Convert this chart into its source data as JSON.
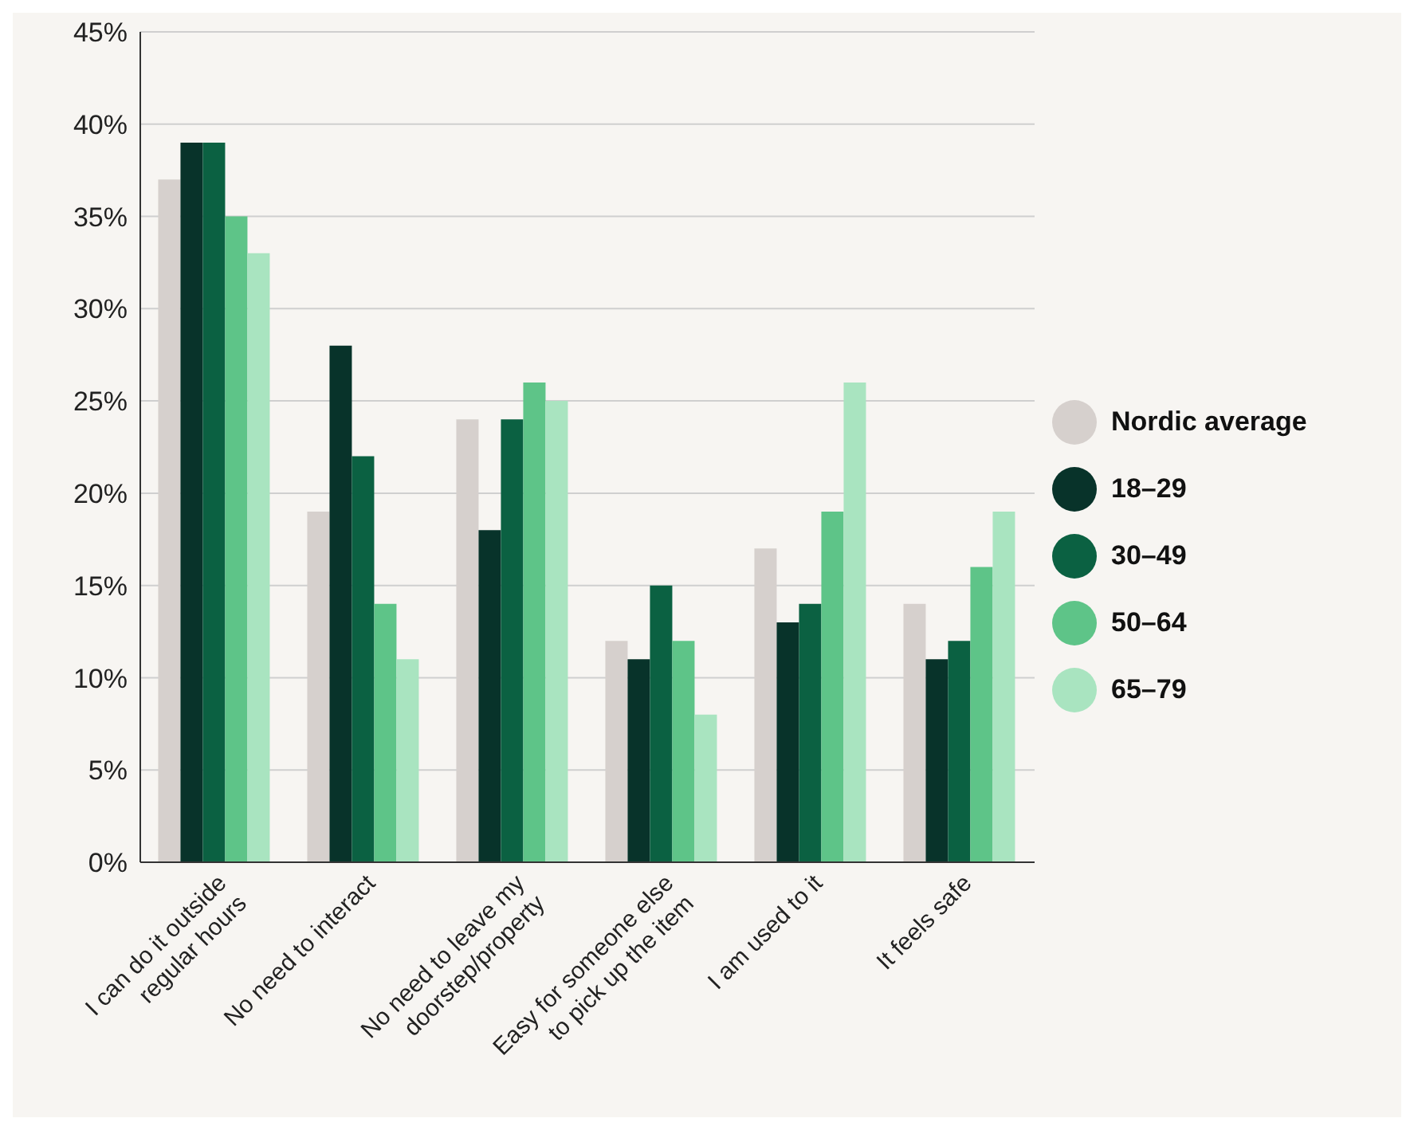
{
  "chart_data": {
    "type": "bar",
    "categories": [
      "I can do it outside regular hours",
      "No need to interact",
      "No need to leave my doorstep/property",
      "Easy for someone else to pick up the item",
      "I am used to it",
      "It feels safe"
    ],
    "series": [
      {
        "name": "Nordic average",
        "color": "#d6d0cd",
        "values": [
          37,
          19,
          24,
          12,
          17,
          14
        ]
      },
      {
        "name": "18–29",
        "color": "#08332a",
        "values": [
          39,
          28,
          18,
          11,
          13,
          11
        ]
      },
      {
        "name": "30–49",
        "color": "#0b6142",
        "values": [
          39,
          22,
          24,
          15,
          14,
          12
        ]
      },
      {
        "name": "50–64",
        "color": "#5ec488",
        "values": [
          35,
          14,
          26,
          12,
          19,
          16
        ]
      },
      {
        "name": "65–79",
        "color": "#a9e4c0",
        "values": [
          33,
          11,
          25,
          8,
          26,
          19
        ]
      }
    ],
    "ylim": [
      0,
      45
    ],
    "yticks": [
      {
        "value": 0,
        "label": "0%"
      },
      {
        "value": 5,
        "label": "5%"
      },
      {
        "value": 10,
        "label": "10%"
      },
      {
        "value": 15,
        "label": "15%"
      },
      {
        "value": 20,
        "label": "20%"
      },
      {
        "value": 25,
        "label": "25%"
      },
      {
        "value": 30,
        "label": "30%"
      },
      {
        "value": 35,
        "label": "35%"
      },
      {
        "value": 40,
        "label": "40%"
      },
      {
        "value": 45,
        "label": "45%"
      }
    ],
    "grid": "y",
    "legend": "right"
  }
}
